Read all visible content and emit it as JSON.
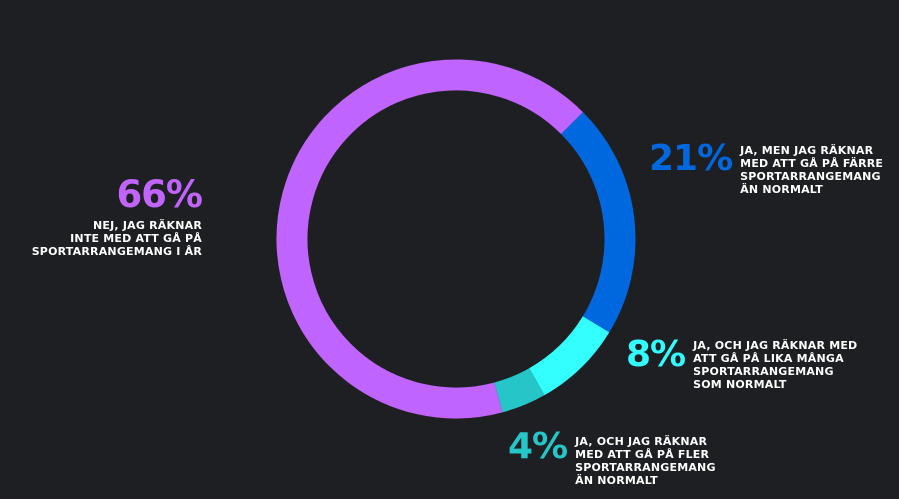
{
  "chart_data": {
    "type": "pie",
    "donut": true,
    "categories": [
      "NEJ, JAG RÄKNAR INTE MED ATT GÅ PÅ SPORTARRANGEMANG I ÅR",
      "JA, MEN JAG RÄKNAR MED ATT GÅ PÅ FÄRRE SPORTARRANGEMANG ÄN NORMALT",
      "JA, OCH JAG RÄKNAR MED ATT GÅ PÅ LIKA MÅNGA SPORTARRANGEMANG SOM NORMALT",
      "JA, OCH JAG RÄKNAR MED ATT GÅ PÅ FLER SPORTARRANGEMANG ÄN NORMALT"
    ],
    "values": [
      66,
      21,
      8,
      4
    ],
    "value_labels": [
      "66%",
      "21%",
      "8%",
      "4%"
    ],
    "colors": [
      "#c064ff",
      "#0068df",
      "#33ffff",
      "#26c6c8"
    ],
    "title": "",
    "legend": "none"
  },
  "background": "#1e1f22",
  "callouts": [
    {
      "pct": "66%",
      "lines": [
        "NEJ, JAG RÄKNAR",
        "INTE MED ATT GÅ PÅ",
        "SPORTARRANGEMANG I ÅR"
      ]
    },
    {
      "pct": "21%",
      "lines": [
        "JA, MEN JAG RÄKNAR",
        "MED ATT GÅ PÅ FÄRRE",
        "SPORTARRANGEMANG",
        "ÄN NORMALT"
      ]
    },
    {
      "pct": "8%",
      "lines": [
        "JA, OCH JAG RÄKNAR MED",
        "ATT GÅ PÅ LIKA MÅNGA",
        "SPORTARRANGEMANG",
        "SOM NORMALT"
      ]
    },
    {
      "pct": "4%",
      "lines": [
        "JA, OCH JAG RÄKNAR",
        "MED ATT GÅ PÅ FLER",
        "SPORTARRANGEMANG",
        "ÄN NORMALT"
      ]
    }
  ]
}
